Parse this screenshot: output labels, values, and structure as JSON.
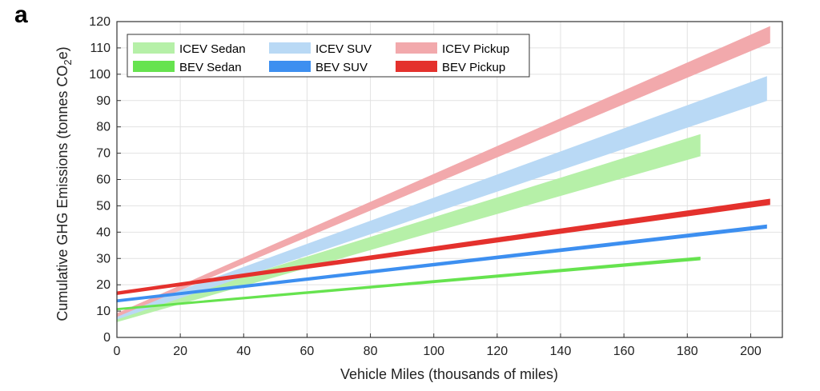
{
  "panel_label": "a",
  "chart_data": {
    "type": "area",
    "title": "",
    "xlabel": "Vehicle Miles (thousands of miles)",
    "ylabel": {
      "prefix": "Cumulative GHG Emissions (tonnes CO",
      "sub": "2",
      "suffix": "e)"
    },
    "xlim": [
      0,
      210
    ],
    "ylim": [
      0,
      120
    ],
    "xticks": [
      0,
      20,
      40,
      60,
      80,
      100,
      120,
      140,
      160,
      180,
      200
    ],
    "yticks": [
      0,
      10,
      20,
      30,
      40,
      50,
      60,
      70,
      80,
      90,
      100,
      110,
      120
    ],
    "grid": true,
    "legend_position": "top-left",
    "series": [
      {
        "name": "ICEV Sedan",
        "kind": "band",
        "color": "#b6f0a8",
        "x": [
          0,
          184
        ],
        "lower": [
          6,
          69
        ],
        "upper": [
          8,
          77
        ]
      },
      {
        "name": "ICEV SUV",
        "kind": "band",
        "color": "#b9d9f5",
        "x": [
          0,
          205
        ],
        "lower": [
          7,
          90
        ],
        "upper": [
          9,
          99
        ]
      },
      {
        "name": "ICEV Pickup",
        "kind": "band",
        "color": "#f2a9ac",
        "x": [
          0,
          206
        ],
        "lower": [
          8,
          112
        ],
        "upper": [
          9,
          118
        ]
      },
      {
        "name": "BEV Sedan",
        "kind": "band",
        "color": "#66e34f",
        "x": [
          0,
          184
        ],
        "lower": [
          10.5,
          29.5
        ],
        "upper": [
          11,
          30.5
        ]
      },
      {
        "name": "BEV SUV",
        "kind": "band",
        "color": "#3d8ff0",
        "x": [
          0,
          205
        ],
        "lower": [
          13.5,
          41.5
        ],
        "upper": [
          14.3,
          42.7
        ]
      },
      {
        "name": "BEV Pickup",
        "kind": "band",
        "color": "#e4312d",
        "x": [
          0,
          206
        ],
        "lower": [
          16.3,
          50.5
        ],
        "upper": [
          17.3,
          52.5
        ]
      }
    ],
    "legend_rows": [
      [
        "ICEV Sedan",
        "ICEV SUV",
        "ICEV Pickup"
      ],
      [
        "BEV Sedan",
        "BEV SUV",
        "BEV Pickup"
      ]
    ]
  }
}
